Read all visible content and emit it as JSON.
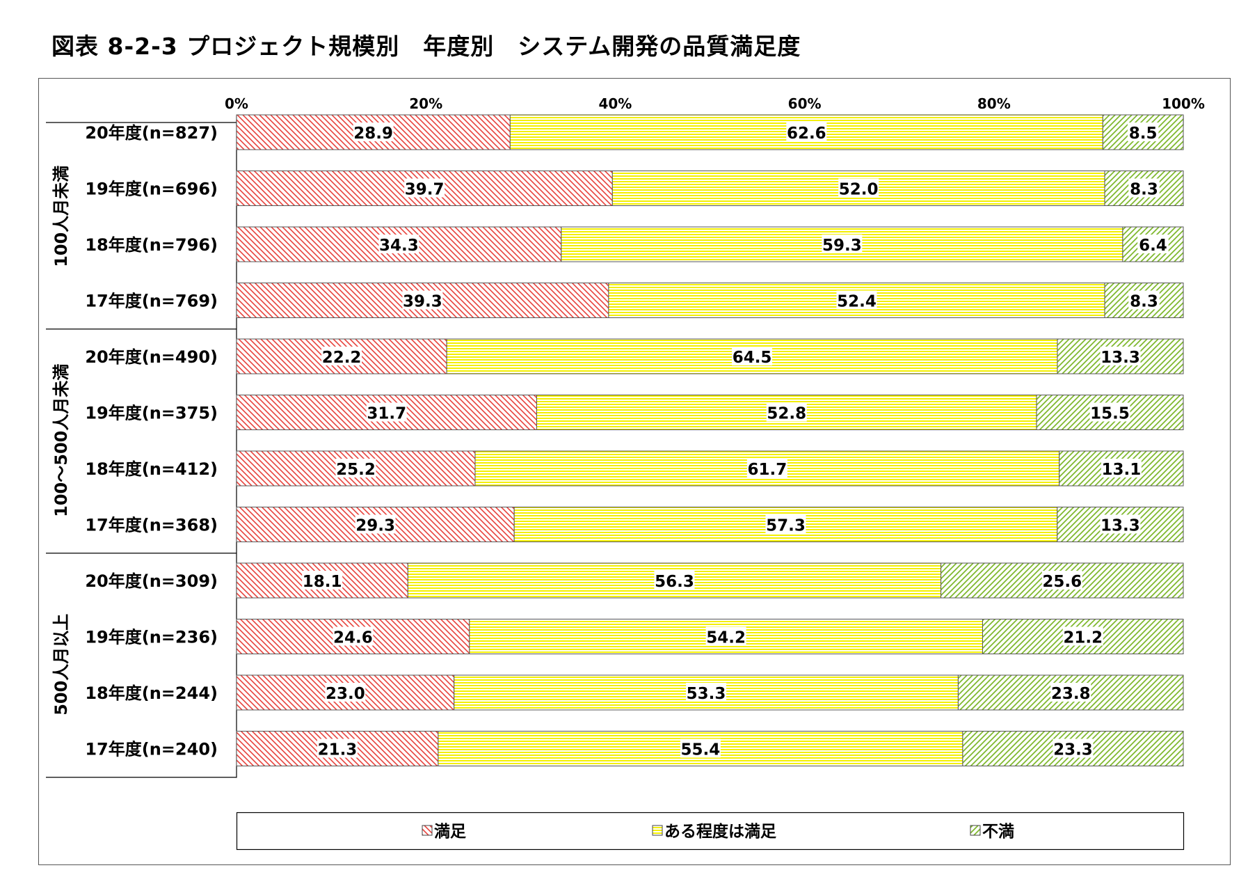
{
  "title": "図表 8-2-3 プロジェクト規模別　年度別　システム開発の品質満足度",
  "chart_data": {
    "type": "bar",
    "orientation": "horizontal",
    "stacked": "percent",
    "title": "図表 8-2-3 プロジェクト規模別　年度別　システム開発の品質満足度",
    "xlabel": "",
    "ylabel": "",
    "xlim": [
      0,
      100
    ],
    "x_ticks": [
      "0%",
      "20%",
      "40%",
      "60%",
      "80%",
      "100%"
    ],
    "x_tick_values": [
      0,
      20,
      40,
      60,
      80,
      100
    ],
    "x_axis_position": "top",
    "grid": false,
    "legend_position": "bottom",
    "groups": [
      {
        "label": "100人月未満",
        "categories": [
          "20年度(n=827)",
          "19年度(n=696)",
          "18年度(n=796)",
          "17年度(n=769)"
        ]
      },
      {
        "label": "100〜500人月未満",
        "categories": [
          "20年度(n=490)",
          "19年度(n=375)",
          "18年度(n=412)",
          "17年度(n=368)"
        ]
      },
      {
        "label": "500人月以上",
        "categories": [
          "20年度(n=309)",
          "19年度(n=236)",
          "18年度(n=244)",
          "17年度(n=240)"
        ]
      }
    ],
    "categories": [
      "20年度(n=827)",
      "19年度(n=696)",
      "18年度(n=796)",
      "17年度(n=769)",
      "20年度(n=490)",
      "19年度(n=375)",
      "18年度(n=412)",
      "17年度(n=368)",
      "20年度(n=309)",
      "19年度(n=236)",
      "18年度(n=244)",
      "17年度(n=240)"
    ],
    "series": [
      {
        "name": "満足",
        "color": "#e8413c",
        "pattern": "backslash-hatch",
        "values": [
          28.9,
          39.7,
          34.3,
          39.3,
          22.2,
          31.7,
          25.2,
          29.3,
          18.1,
          24.6,
          23.0,
          21.3
        ],
        "labels": [
          "28.9",
          "39.7",
          "34.3",
          "39.3",
          "22.2",
          "31.7",
          "25.2",
          "29.3",
          "18.1",
          "24.6",
          "23.0",
          "21.3"
        ]
      },
      {
        "name": "ある程度は満足",
        "color": "#f4f000",
        "pattern": "horizontal-lines",
        "values": [
          62.6,
          52.0,
          59.3,
          52.4,
          64.5,
          52.8,
          61.7,
          57.3,
          56.3,
          54.2,
          53.3,
          55.4
        ],
        "labels": [
          "62.6",
          "52.0",
          "59.3",
          "52.4",
          "64.5",
          "52.8",
          "61.7",
          "57.3",
          "56.3",
          "54.2",
          "53.3",
          "55.4"
        ]
      },
      {
        "name": "不満",
        "color": "#7fb82e",
        "pattern": "slash-hatch",
        "values": [
          8.5,
          8.3,
          6.4,
          8.3,
          13.3,
          15.5,
          13.1,
          13.3,
          25.6,
          21.2,
          23.8,
          23.3
        ],
        "labels": [
          "8.5",
          "8.3",
          "6.4",
          "8.3",
          "13.3",
          "15.5",
          "13.1",
          "13.3",
          "25.6",
          "21.2",
          "23.8",
          "23.3"
        ]
      }
    ]
  }
}
